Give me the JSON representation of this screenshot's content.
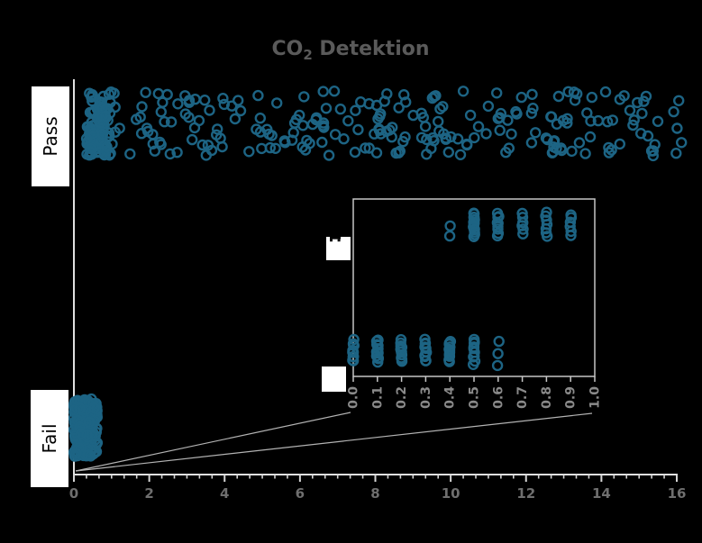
{
  "title": {
    "prefix": "CO",
    "sub": "2",
    "rest": " Detektion",
    "plain": "CO2 Detektion"
  },
  "axis_labels": {
    "pass": "Pass",
    "fail": "Fail"
  },
  "colors": {
    "background": "#000000",
    "marker": "#1d6484",
    "title_text": "#5a5a5a",
    "tick_label": "#6f6f6f",
    "inset_tick_label": "#8a8a8a",
    "axis_line": "#e0e0e0",
    "tick_line": "#d6d6d6",
    "inset_frame": "#c6c6c6",
    "connector": "#b3b3b3",
    "label_box": "#ffffff",
    "label_text": "#000000"
  },
  "chart_data": {
    "type": "scatter",
    "title": "CO2 Detektion",
    "categories": [
      "Pass",
      "Fail"
    ],
    "xlim": [
      0,
      16
    ],
    "x_tick_labels": [
      "0",
      "2",
      "4",
      "6",
      "8",
      "10",
      "12",
      "14",
      "16"
    ],
    "x_ticks": [
      0,
      2,
      4,
      6,
      8,
      10,
      12,
      14,
      16
    ],
    "minor_ticks_per_major": 6,
    "marker": "open-circle",
    "grid": false,
    "series": [
      {
        "name": "Pass",
        "approx_count": 340,
        "min": 0.4,
        "max": 16.2,
        "distribution": "dense cluster of values 0.4-0.9 near zero, then roughly uniform spread 1.0-16.2"
      },
      {
        "name": "Fail",
        "approx_count": 270,
        "min": 0.0,
        "max": 0.6,
        "distribution": "all values between 0.0 and 0.6, quantized to 0.1"
      }
    ],
    "inset": {
      "xlim": [
        0.0,
        1.0
      ],
      "x_tick_labels": [
        "0.0",
        "0.1",
        "0.2",
        "0.3",
        "0.4",
        "0.5",
        "0.6",
        "0.7",
        "0.8",
        "0.9",
        "1.0"
      ],
      "categories": [
        "Pass",
        "Fail"
      ],
      "pass_columns": [
        {
          "x": 0.4,
          "n": 2,
          "span": [
            0.55,
            1.0
          ]
        },
        {
          "x": 0.5,
          "n": 14,
          "span": [
            0.0,
            1.0
          ]
        },
        {
          "x": 0.6,
          "n": 9,
          "span": [
            0.0,
            1.0
          ]
        },
        {
          "x": 0.7,
          "n": 6,
          "span": [
            0.05,
            0.95
          ]
        },
        {
          "x": 0.8,
          "n": 7,
          "span": [
            0.0,
            1.0
          ]
        },
        {
          "x": 0.9,
          "n": 6,
          "span": [
            0.05,
            1.0
          ]
        }
      ],
      "fail_columns": [
        {
          "x": 0.0,
          "n": 11,
          "span": [
            0.0,
            1.0
          ]
        },
        {
          "x": 0.1,
          "n": 11,
          "span": [
            0.0,
            1.0
          ]
        },
        {
          "x": 0.2,
          "n": 11,
          "span": [
            0.0,
            1.0
          ]
        },
        {
          "x": 0.3,
          "n": 11,
          "span": [
            0.0,
            1.0
          ]
        },
        {
          "x": 0.4,
          "n": 11,
          "span": [
            0.0,
            1.0
          ]
        },
        {
          "x": 0.5,
          "n": 10,
          "span": [
            -0.08,
            1.08
          ]
        },
        {
          "x": 0.6,
          "n": 3,
          "span": [
            0.0,
            1.1
          ]
        }
      ]
    },
    "seed": 7
  }
}
